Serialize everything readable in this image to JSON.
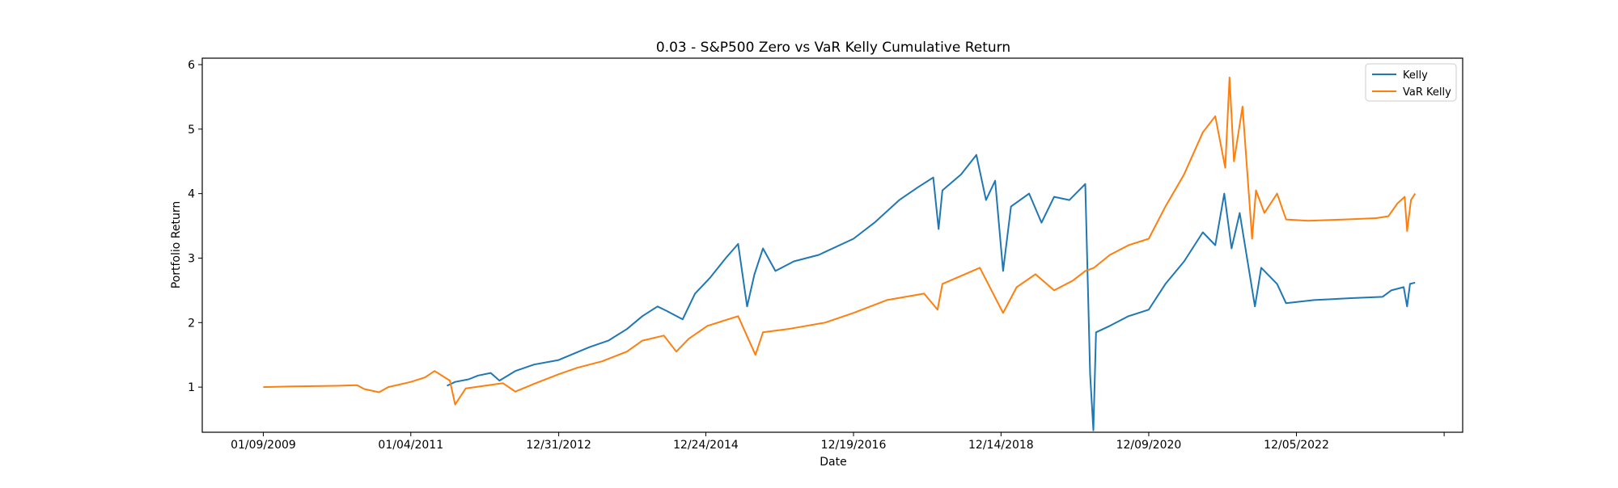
{
  "chart_data": {
    "type": "line",
    "title": "0.03 - S&P500 Zero vs VaR Kelly Cumulative Return",
    "xlabel": "Date",
    "ylabel": "Portfolio Return",
    "x_tick_labels": [
      "01/09/2009",
      "01/04/2011",
      "12/31/2012",
      "12/24/2014",
      "12/19/2016",
      "12/14/2018",
      "12/09/2020",
      "12/05/2022"
    ],
    "y_ticks": [
      1,
      2,
      3,
      4,
      5,
      6
    ],
    "xlim": [
      "2008-03-15",
      "2025-03-01"
    ],
    "ylim": [
      0.3,
      6.1
    ],
    "grid": false,
    "legend_position": "top-right",
    "series": [
      {
        "name": "Kelly",
        "color": "#1f77b4",
        "points": [
          [
            "2011-07-01",
            1.02
          ],
          [
            "2011-08-10",
            1.08
          ],
          [
            "2011-10-15",
            1.12
          ],
          [
            "2011-12-01",
            1.18
          ],
          [
            "2012-02-01",
            1.22
          ],
          [
            "2012-03-15",
            1.1
          ],
          [
            "2012-06-01",
            1.25
          ],
          [
            "2012-09-01",
            1.35
          ],
          [
            "2012-12-31",
            1.42
          ],
          [
            "2013-03-01",
            1.5
          ],
          [
            "2013-06-01",
            1.62
          ],
          [
            "2013-09-01",
            1.72
          ],
          [
            "2013-12-01",
            1.9
          ],
          [
            "2014-02-15",
            2.1
          ],
          [
            "2014-05-01",
            2.25
          ],
          [
            "2014-06-15",
            2.18
          ],
          [
            "2014-09-01",
            2.05
          ],
          [
            "2014-11-01",
            2.45
          ],
          [
            "2015-01-15",
            2.7
          ],
          [
            "2015-04-01",
            3.0
          ],
          [
            "2015-06-01",
            3.22
          ],
          [
            "2015-07-15",
            2.25
          ],
          [
            "2015-08-20",
            2.75
          ],
          [
            "2015-10-01",
            3.15
          ],
          [
            "2015-12-01",
            2.8
          ],
          [
            "2016-03-01",
            2.95
          ],
          [
            "2016-07-01",
            3.05
          ],
          [
            "2016-12-19",
            3.3
          ],
          [
            "2017-04-01",
            3.55
          ],
          [
            "2017-08-01",
            3.9
          ],
          [
            "2017-11-01",
            4.1
          ],
          [
            "2018-01-15",
            4.25
          ],
          [
            "2018-02-10",
            3.45
          ],
          [
            "2018-03-01",
            4.05
          ],
          [
            "2018-06-01",
            4.3
          ],
          [
            "2018-08-15",
            4.6
          ],
          [
            "2018-10-01",
            3.9
          ],
          [
            "2018-11-15",
            4.2
          ],
          [
            "2018-12-24",
            2.8
          ],
          [
            "2019-02-01",
            3.8
          ],
          [
            "2019-05-01",
            4.0
          ],
          [
            "2019-07-01",
            3.55
          ],
          [
            "2019-09-01",
            3.95
          ],
          [
            "2019-11-15",
            3.9
          ],
          [
            "2020-02-01",
            4.15
          ],
          [
            "2020-02-25",
            1.2
          ],
          [
            "2020-03-12",
            0.33
          ],
          [
            "2020-03-25",
            1.85
          ],
          [
            "2020-06-01",
            1.95
          ],
          [
            "2020-09-01",
            2.1
          ],
          [
            "2020-12-09",
            2.2
          ],
          [
            "2021-03-01",
            2.6
          ],
          [
            "2021-06-01",
            2.95
          ],
          [
            "2021-09-01",
            3.4
          ],
          [
            "2021-11-01",
            3.2
          ],
          [
            "2021-12-15",
            4.0
          ],
          [
            "2022-01-20",
            3.15
          ],
          [
            "2022-03-01",
            3.7
          ],
          [
            "2022-05-15",
            2.25
          ],
          [
            "2022-06-15",
            2.85
          ],
          [
            "2022-09-01",
            2.6
          ],
          [
            "2022-10-15",
            2.3
          ],
          [
            "2023-03-01",
            2.35
          ],
          [
            "2023-09-01",
            2.38
          ],
          [
            "2024-02-01",
            2.4
          ],
          [
            "2024-03-15",
            2.5
          ],
          [
            "2024-05-15",
            2.55
          ],
          [
            "2024-06-01",
            2.25
          ],
          [
            "2024-06-15",
            2.6
          ],
          [
            "2024-07-10",
            2.62
          ]
        ]
      },
      {
        "name": "VaR Kelly",
        "color": "#ff7f0e",
        "points": [
          [
            "2009-01-09",
            1.0
          ],
          [
            "2009-06-01",
            1.01
          ],
          [
            "2010-01-01",
            1.02
          ],
          [
            "2010-04-15",
            1.03
          ],
          [
            "2010-05-20",
            0.97
          ],
          [
            "2010-08-01",
            0.92
          ],
          [
            "2010-09-15",
            1.0
          ],
          [
            "2011-01-04",
            1.08
          ],
          [
            "2011-03-15",
            1.15
          ],
          [
            "2011-05-01",
            1.25
          ],
          [
            "2011-07-15",
            1.1
          ],
          [
            "2011-08-10",
            0.73
          ],
          [
            "2011-10-01",
            0.98
          ],
          [
            "2012-01-01",
            1.02
          ],
          [
            "2012-04-01",
            1.06
          ],
          [
            "2012-06-01",
            0.93
          ],
          [
            "2012-09-01",
            1.05
          ],
          [
            "2012-12-31",
            1.2
          ],
          [
            "2013-04-01",
            1.3
          ],
          [
            "2013-08-01",
            1.4
          ],
          [
            "2013-12-01",
            1.55
          ],
          [
            "2014-02-15",
            1.72
          ],
          [
            "2014-06-01",
            1.8
          ],
          [
            "2014-08-01",
            1.55
          ],
          [
            "2014-10-01",
            1.75
          ],
          [
            "2015-01-01",
            1.95
          ],
          [
            "2015-06-01",
            2.1
          ],
          [
            "2015-08-25",
            1.5
          ],
          [
            "2015-10-01",
            1.85
          ],
          [
            "2016-02-01",
            1.9
          ],
          [
            "2016-08-01",
            2.0
          ],
          [
            "2016-12-19",
            2.15
          ],
          [
            "2017-06-01",
            2.35
          ],
          [
            "2017-12-01",
            2.45
          ],
          [
            "2018-02-05",
            2.2
          ],
          [
            "2018-03-01",
            2.6
          ],
          [
            "2018-09-01",
            2.85
          ],
          [
            "2018-12-24",
            2.15
          ],
          [
            "2019-03-01",
            2.55
          ],
          [
            "2019-06-01",
            2.75
          ],
          [
            "2019-09-01",
            2.5
          ],
          [
            "2019-12-01",
            2.65
          ],
          [
            "2020-02-01",
            2.8
          ],
          [
            "2020-03-15",
            2.85
          ],
          [
            "2020-06-01",
            3.05
          ],
          [
            "2020-09-01",
            3.2
          ],
          [
            "2020-12-09",
            3.3
          ],
          [
            "2021-03-01",
            3.8
          ],
          [
            "2021-06-01",
            4.3
          ],
          [
            "2021-09-01",
            4.95
          ],
          [
            "2021-11-01",
            5.2
          ],
          [
            "2021-12-20",
            4.4
          ],
          [
            "2022-01-10",
            5.8
          ],
          [
            "2022-02-01",
            4.5
          ],
          [
            "2022-03-15",
            5.35
          ],
          [
            "2022-05-01",
            3.3
          ],
          [
            "2022-05-20",
            4.05
          ],
          [
            "2022-07-01",
            3.7
          ],
          [
            "2022-09-01",
            4.0
          ],
          [
            "2022-10-15",
            3.6
          ],
          [
            "2023-02-01",
            3.58
          ],
          [
            "2023-08-01",
            3.6
          ],
          [
            "2024-01-01",
            3.62
          ],
          [
            "2024-03-01",
            3.65
          ],
          [
            "2024-04-15",
            3.85
          ],
          [
            "2024-05-20",
            3.95
          ],
          [
            "2024-06-01",
            3.42
          ],
          [
            "2024-06-20",
            3.9
          ],
          [
            "2024-07-10",
            4.0
          ]
        ]
      }
    ]
  }
}
